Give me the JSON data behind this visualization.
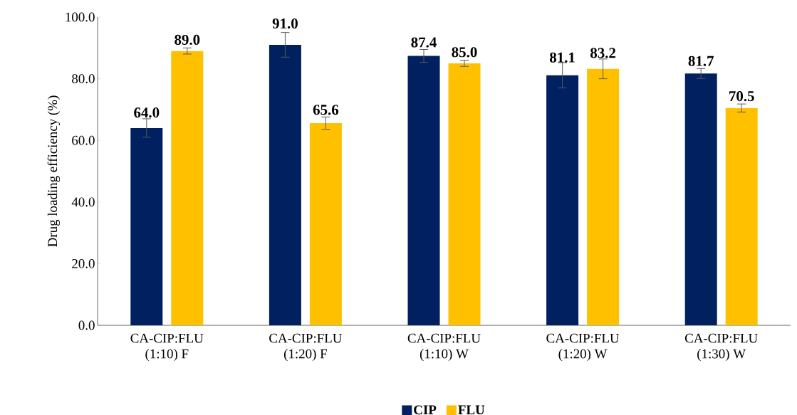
{
  "chart_data": {
    "type": "bar",
    "ylabel": "Drug loading efficiency (%)",
    "categories": [
      "CA-CIP:FLU\n(1:10) F",
      "CA-CIP:FLU\n(1:20) F",
      "CA-CIP:FLU\n(1:10) W",
      "CA-CIP:FLU\n(1:20) W",
      "CA-CIP:FLU\n(1:30) W"
    ],
    "series": [
      {
        "name": "CIP",
        "color": "#002060",
        "values": [
          64.0,
          91.0,
          87.4,
          81.1,
          81.7
        ],
        "value_labels": [
          "64.0",
          "91.0",
          "87.4",
          "81.1",
          "81.7"
        ],
        "errors": [
          3.0,
          4.0,
          2.1,
          4.1,
          1.6
        ]
      },
      {
        "name": "FLU",
        "color": "#ffc000",
        "values": [
          89.0,
          65.6,
          85.0,
          83.2,
          70.5
        ],
        "value_labels": [
          "89.0",
          "65.6",
          "85.0",
          "83.2",
          "70.5"
        ],
        "errors": [
          1.0,
          2.0,
          1.0,
          3.2,
          1.3
        ]
      }
    ],
    "ylim": [
      0,
      100
    ],
    "yticks": [
      {
        "value": 0,
        "label": "0.0"
      },
      {
        "value": 20,
        "label": "20.0"
      },
      {
        "value": 40,
        "label": "40.0"
      },
      {
        "value": 60,
        "label": "60.0"
      },
      {
        "value": 80,
        "label": "80.0"
      },
      {
        "value": 100,
        "label": "100.0"
      }
    ],
    "grid": false,
    "legend": "bottom"
  }
}
